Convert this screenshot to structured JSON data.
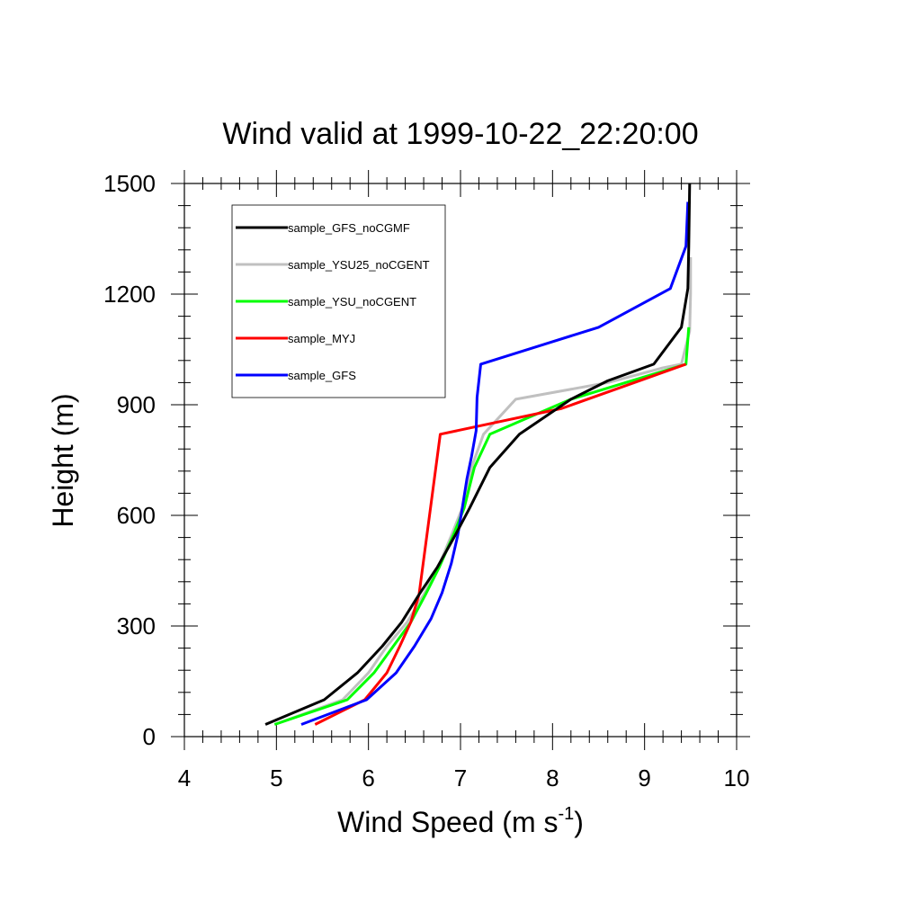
{
  "chart_data": {
    "type": "line",
    "title": "Wind valid at 1999-10-22_22:20:00",
    "xlabel": "Wind Speed (m s",
    "xlabel_sup": "-1",
    "xlabel_end": ")",
    "ylabel": "Height (m)",
    "xlim": [
      4,
      10
    ],
    "ylim": [
      0,
      1500
    ],
    "xticks": [
      "4",
      "5",
      "6",
      "7",
      "8",
      "9",
      "10"
    ],
    "yticks": [
      "0",
      "300",
      "600",
      "900",
      "1200",
      "1500"
    ],
    "legend_position": "top-left",
    "grid": false,
    "series": [
      {
        "name": "sample_GFS_noCGMF",
        "color": "#000000",
        "points": [
          [
            4.88,
            33
          ],
          [
            5.52,
            100
          ],
          [
            5.88,
            173
          ],
          [
            6.15,
            245
          ],
          [
            6.36,
            310
          ],
          [
            6.55,
            385
          ],
          [
            6.75,
            460
          ],
          [
            6.94,
            545
          ],
          [
            7.1,
            620
          ],
          [
            7.32,
            730
          ],
          [
            7.64,
            820
          ],
          [
            8.2,
            915
          ],
          [
            8.6,
            965
          ],
          [
            9.1,
            1010
          ],
          [
            9.4,
            1110
          ],
          [
            9.47,
            1215
          ],
          [
            9.48,
            1330
          ],
          [
            9.49,
            1500
          ]
        ]
      },
      {
        "name": "sample_YSU25_noCGENT",
        "color": "#c0c0c0",
        "points": [
          [
            4.98,
            33
          ],
          [
            5.72,
            100
          ],
          [
            6.0,
            173
          ],
          [
            6.2,
            245
          ],
          [
            6.42,
            310
          ],
          [
            6.6,
            385
          ],
          [
            6.76,
            460
          ],
          [
            6.9,
            545
          ],
          [
            7.02,
            620
          ],
          [
            7.12,
            730
          ],
          [
            7.25,
            820
          ],
          [
            7.6,
            915
          ],
          [
            8.6,
            960
          ],
          [
            9.2,
            1000
          ],
          [
            9.4,
            1010
          ],
          [
            9.49,
            1100
          ],
          [
            9.5,
            1200
          ],
          [
            9.5,
            1300
          ]
        ]
      },
      {
        "name": "sample_YSU_noCGENT",
        "color": "#00ff00",
        "points": [
          [
            4.98,
            33
          ],
          [
            5.77,
            100
          ],
          [
            6.06,
            173
          ],
          [
            6.27,
            245
          ],
          [
            6.46,
            310
          ],
          [
            6.62,
            385
          ],
          [
            6.77,
            460
          ],
          [
            6.92,
            545
          ],
          [
            7.04,
            620
          ],
          [
            7.15,
            730
          ],
          [
            7.32,
            820
          ],
          [
            8.2,
            915
          ],
          [
            9.45,
            1010
          ],
          [
            9.48,
            1110
          ]
        ]
      },
      {
        "name": "sample_MYJ",
        "color": "#ff0000",
        "points": [
          [
            5.42,
            33
          ],
          [
            5.96,
            100
          ],
          [
            6.2,
            173
          ],
          [
            6.34,
            245
          ],
          [
            6.46,
            310
          ],
          [
            6.55,
            385
          ],
          [
            6.78,
            820
          ],
          [
            8.1,
            890
          ],
          [
            9.0,
            970
          ],
          [
            9.45,
            1010
          ]
        ]
      },
      {
        "name": "sample_GFS",
        "color": "#0000ff",
        "points": [
          [
            5.27,
            33
          ],
          [
            5.98,
            100
          ],
          [
            6.3,
            173
          ],
          [
            6.5,
            245
          ],
          [
            6.68,
            320
          ],
          [
            6.8,
            390
          ],
          [
            6.9,
            470
          ],
          [
            6.97,
            545
          ],
          [
            7.02,
            620
          ],
          [
            7.07,
            700
          ],
          [
            7.12,
            760
          ],
          [
            7.17,
            830
          ],
          [
            7.18,
            920
          ],
          [
            7.22,
            1010
          ],
          [
            8.5,
            1110
          ],
          [
            9.28,
            1215
          ],
          [
            9.45,
            1330
          ],
          [
            9.47,
            1450
          ]
        ]
      }
    ]
  }
}
